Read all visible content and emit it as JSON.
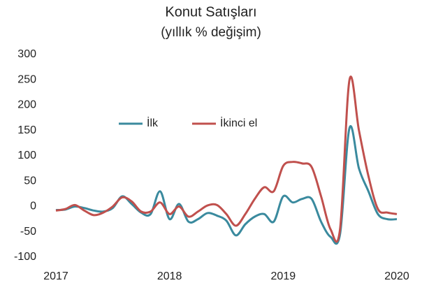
{
  "chart_data": {
    "type": "line",
    "title": "Konut Satışları",
    "subtitle": "(yıllık % değişim)",
    "categories": [
      "2017",
      null,
      null,
      null,
      null,
      null,
      null,
      null,
      null,
      null,
      null,
      null,
      "2018",
      null,
      null,
      null,
      null,
      null,
      null,
      null,
      null,
      null,
      null,
      null,
      "2019",
      null,
      null,
      null,
      null,
      null,
      null,
      null,
      null,
      null,
      null,
      null,
      "2020"
    ],
    "series": [
      {
        "name": "İlk",
        "color": "#3a8a9e",
        "values": [
          -7,
          -6,
          0,
          -3,
          -8,
          -10,
          -3,
          20,
          5,
          -12,
          -15,
          30,
          -25,
          5,
          -30,
          -25,
          -13,
          -18,
          -28,
          -57,
          -35,
          -20,
          -15,
          -30,
          20,
          8,
          15,
          15,
          -30,
          -60,
          -55,
          155,
          75,
          30,
          -15,
          -25,
          -25
        ]
      },
      {
        "name": "İkinci el",
        "color": "#c0504d",
        "values": [
          -8,
          -5,
          3,
          -8,
          -17,
          -12,
          0,
          18,
          10,
          -10,
          -10,
          8,
          -15,
          0,
          -20,
          -10,
          2,
          3,
          -15,
          -38,
          -15,
          15,
          38,
          30,
          80,
          88,
          85,
          78,
          20,
          -45,
          -45,
          250,
          150,
          60,
          -5,
          -12,
          -15
        ]
      }
    ],
    "ylim": [
      -100,
      300
    ],
    "yticks": [
      -100,
      -50,
      0,
      50,
      100,
      150,
      200,
      250,
      300
    ],
    "grid": false,
    "legend": "center"
  }
}
